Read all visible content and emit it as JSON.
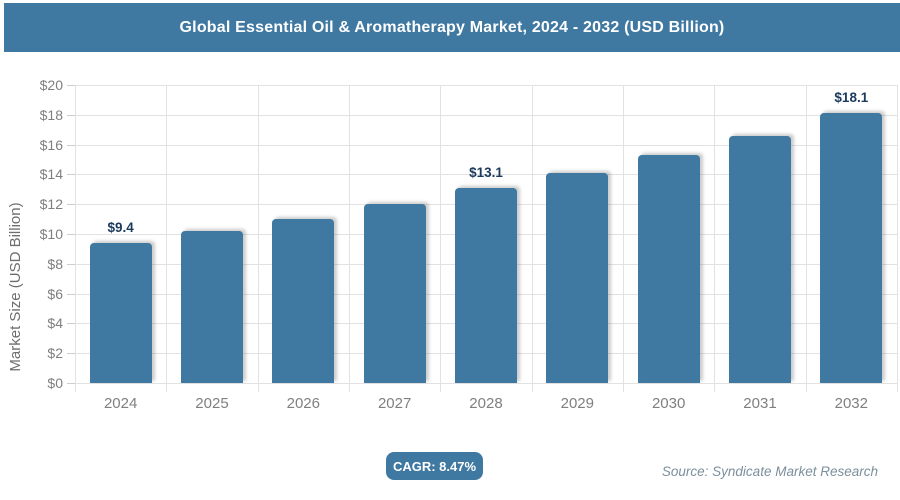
{
  "header": {
    "title": "Global Essential Oil & Aromatherapy Market, 2024 - 2032 (USD Billion)"
  },
  "chart_data": {
    "type": "bar",
    "title": "Global Essential Oil & Aromatherapy Market, 2024 - 2032 (USD Billion)",
    "categories": [
      "2024",
      "2025",
      "2026",
      "2027",
      "2028",
      "2029",
      "2030",
      "2031",
      "2032"
    ],
    "values": [
      9.4,
      10.2,
      11.0,
      12.0,
      13.1,
      14.1,
      15.3,
      16.6,
      18.1
    ],
    "point_labels": [
      "$9.4",
      "",
      "",
      "",
      "$13.1",
      "",
      "",
      "",
      "$18.1"
    ],
    "xlabel": "",
    "ylabel": "Market Size (USD Billion)",
    "ylim": [
      0,
      20
    ],
    "y_tick_step": 2,
    "y_tick_labels": [
      "$0",
      "$2",
      "$4",
      "$6",
      "$8",
      "$10",
      "$12",
      "$14",
      "$16",
      "$18",
      "$20"
    ],
    "grid": true,
    "legend": "none"
  },
  "footer": {
    "cagr_label": "CAGR: 8.47%",
    "source": "Source: Syndicate Market Research"
  },
  "colors": {
    "accent_blue": "#3f78a1",
    "grid_line": "#e2e2e2",
    "tick_line": "#cdcdcd",
    "axis_text": "#7f7f7f",
    "axis_title_text": "#6e6e6e",
    "data_label_text": "#1b3a5c",
    "source_text": "#7b8f9c"
  }
}
